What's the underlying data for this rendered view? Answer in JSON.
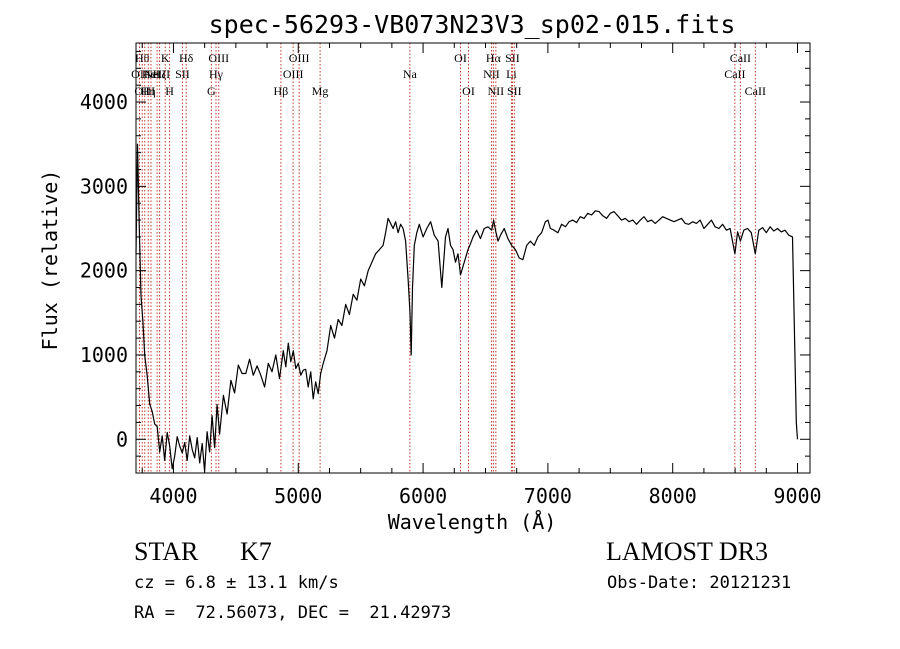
{
  "chart_data": {
    "type": "line",
    "title": "spec-56293-VB073N23V3_sp02-015.fits",
    "xlabel": "Wavelength (Å)",
    "ylabel": "Flux (relative)",
    "xlim": [
      3700,
      9100
    ],
    "ylim": [
      -400,
      4700
    ],
    "xticks": [
      4000,
      5000,
      6000,
      7000,
      8000,
      9000
    ],
    "yticks": [
      0,
      1000,
      2000,
      3000,
      4000
    ],
    "line_color": "#000000",
    "marker_color": "#c0392b",
    "grid": false,
    "series": [
      {
        "x": [
          3700,
          3712,
          3725,
          3740,
          3755,
          3770,
          3790,
          3810,
          3830,
          3850,
          3870,
          3890,
          3910,
          3930,
          3950,
          3970,
          3990,
          4010,
          4030,
          4050,
          4070,
          4090,
          4110,
          4130,
          4150,
          4170,
          4190,
          4210,
          4230,
          4250,
          4270,
          4290,
          4310,
          4330,
          4350,
          4370,
          4400,
          4430,
          4460,
          4490,
          4520,
          4550,
          4580,
          4610,
          4640,
          4670,
          4700,
          4730,
          4760,
          4790,
          4820,
          4850,
          4880,
          4900,
          4920,
          4940,
          4960,
          4980,
          5000,
          5020,
          5040,
          5060,
          5080,
          5100,
          5120,
          5140,
          5160,
          5180,
          5200,
          5230,
          5260,
          5290,
          5320,
          5350,
          5380,
          5410,
          5440,
          5470,
          5500,
          5530,
          5560,
          5590,
          5620,
          5650,
          5680,
          5700,
          5720,
          5740,
          5760,
          5780,
          5800,
          5820,
          5840,
          5860,
          5880,
          5895,
          5905,
          5915,
          5930,
          5950,
          5970,
          6000,
          6030,
          6060,
          6090,
          6120,
          6150,
          6180,
          6200,
          6220,
          6240,
          6260,
          6280,
          6300,
          6320,
          6340,
          6360,
          6380,
          6400,
          6430,
          6460,
          6490,
          6520,
          6550,
          6565,
          6580,
          6600,
          6620,
          6650,
          6680,
          6710,
          6740,
          6770,
          6800,
          6830,
          6860,
          6890,
          6920,
          6950,
          6980,
          7000,
          7020,
          7050,
          7080,
          7110,
          7140,
          7170,
          7200,
          7230,
          7260,
          7290,
          7320,
          7350,
          7380,
          7410,
          7440,
          7470,
          7500,
          7530,
          7560,
          7590,
          7620,
          7650,
          7680,
          7710,
          7740,
          7770,
          7800,
          7830,
          7860,
          7890,
          7920,
          7950,
          7980,
          8010,
          8040,
          8070,
          8100,
          8130,
          8160,
          8190,
          8220,
          8250,
          8280,
          8310,
          8340,
          8370,
          8400,
          8430,
          8460,
          8498,
          8520,
          8542,
          8570,
          8600,
          8630,
          8662,
          8690,
          8720,
          8750,
          8780,
          8810,
          8840,
          8870,
          8900,
          8930,
          8960,
          8990,
          9000
        ],
        "y": [
          2200,
          3500,
          2600,
          1700,
          1400,
          1000,
          750,
          420,
          330,
          180,
          150,
          -150,
          40,
          -250,
          80,
          -80,
          -350,
          -200,
          30,
          -80,
          -160,
          -40,
          -250,
          40,
          -120,
          -220,
          20,
          -280,
          -50,
          -380,
          90,
          -150,
          280,
          -100,
          410,
          60,
          520,
          300,
          700,
          550,
          880,
          780,
          780,
          950,
          760,
          870,
          760,
          620,
          900,
          800,
          1000,
          720,
          1050,
          860,
          1140,
          920,
          1050,
          840,
          900,
          760,
          820,
          830,
          620,
          800,
          480,
          680,
          540,
          780,
          900,
          1050,
          1350,
          1200,
          1420,
          1350,
          1600,
          1480,
          1720,
          1650,
          1900,
          1820,
          2000,
          2100,
          2200,
          2250,
          2300,
          2450,
          2620,
          2560,
          2500,
          2580,
          2450,
          2550,
          2500,
          2350,
          1900,
          1500,
          1000,
          1800,
          2300,
          2450,
          2550,
          2400,
          2500,
          2580,
          2420,
          2350,
          1800,
          2400,
          2500,
          2300,
          2250,
          2100,
          2200,
          1950,
          2050,
          2150,
          2250,
          2320,
          2400,
          2480,
          2380,
          2500,
          2520,
          2480,
          2600,
          2480,
          2350,
          2420,
          2500,
          2380,
          2300,
          2250,
          2150,
          2130,
          2300,
          2350,
          2300,
          2400,
          2450,
          2580,
          2600,
          2500,
          2480,
          2450,
          2550,
          2520,
          2580,
          2600,
          2570,
          2640,
          2620,
          2680,
          2660,
          2710,
          2700,
          2650,
          2620,
          2680,
          2700,
          2650,
          2600,
          2620,
          2580,
          2600,
          2550,
          2600,
          2640,
          2580,
          2600,
          2560,
          2600,
          2640,
          2620,
          2600,
          2580,
          2600,
          2620,
          2560,
          2550,
          2580,
          2560,
          2600,
          2500,
          2550,
          2600,
          2520,
          2500,
          2550,
          2480,
          2500,
          2200,
          2460,
          2350,
          2480,
          2500,
          2450,
          2200,
          2480,
          2510,
          2450,
          2520,
          2470,
          2500,
          2460,
          2480,
          2420,
          2400,
          200,
          0
        ]
      }
    ],
    "lines": [
      {
        "x": 3728,
        "label": "OII",
        "row": 2
      },
      {
        "x": 3750,
        "label": "Hθ",
        "row": 1
      },
      {
        "x": 3770,
        "label": "OIII",
        "row": 3
      },
      {
        "x": 3798,
        "label": "Hη",
        "row": 3
      },
      {
        "x": 3820,
        "label": "HeI",
        "row": 2
      },
      {
        "x": 3869,
        "label": "NeIII",
        "row": 2
      },
      {
        "x": 3889,
        "label": "Hζ",
        "row": 2
      },
      {
        "x": 3934,
        "label": "K",
        "row": 1
      },
      {
        "x": 3969,
        "label": "H",
        "row": 3
      },
      {
        "x": 4072,
        "label": "SII",
        "row": 2
      },
      {
        "x": 4102,
        "label": "Hδ",
        "row": 1
      },
      {
        "x": 4304,
        "label": "G",
        "row": 3
      },
      {
        "x": 4341,
        "label": "Hγ",
        "row": 2
      },
      {
        "x": 4363,
        "label": "OIII",
        "row": 1
      },
      {
        "x": 4861,
        "label": "Hβ",
        "row": 3
      },
      {
        "x": 4959,
        "label": "OIII",
        "row": 2
      },
      {
        "x": 5007,
        "label": "OIII",
        "row": 1
      },
      {
        "x": 5175,
        "label": "Mg",
        "row": 3
      },
      {
        "x": 5894,
        "label": "Na",
        "row": 2
      },
      {
        "x": 6300,
        "label": "OI",
        "row": 1
      },
      {
        "x": 6364,
        "label": "OI",
        "row": 3
      },
      {
        "x": 6548,
        "label": "NII",
        "row": 2
      },
      {
        "x": 6563,
        "label": "Hα",
        "row": 1
      },
      {
        "x": 6583,
        "label": "NII",
        "row": 3
      },
      {
        "x": 6708,
        "label": "Li",
        "row": 2
      },
      {
        "x": 6716,
        "label": "SII",
        "row": 1
      },
      {
        "x": 6731,
        "label": "SII",
        "row": 3
      },
      {
        "x": 8498,
        "label": "CaII",
        "row": 2
      },
      {
        "x": 8542,
        "label": "CaII",
        "row": 1
      },
      {
        "x": 8662,
        "label": "CaII",
        "row": 3
      }
    ]
  },
  "info": {
    "class": "STAR",
    "subclass": "K7",
    "survey": "LAMOST DR3",
    "cz": "cz = 6.8 ± 13.1 km/s",
    "obs_date": "Obs-Date: 20121231",
    "radec": "RA =  72.56073, DEC =  21.42973"
  }
}
